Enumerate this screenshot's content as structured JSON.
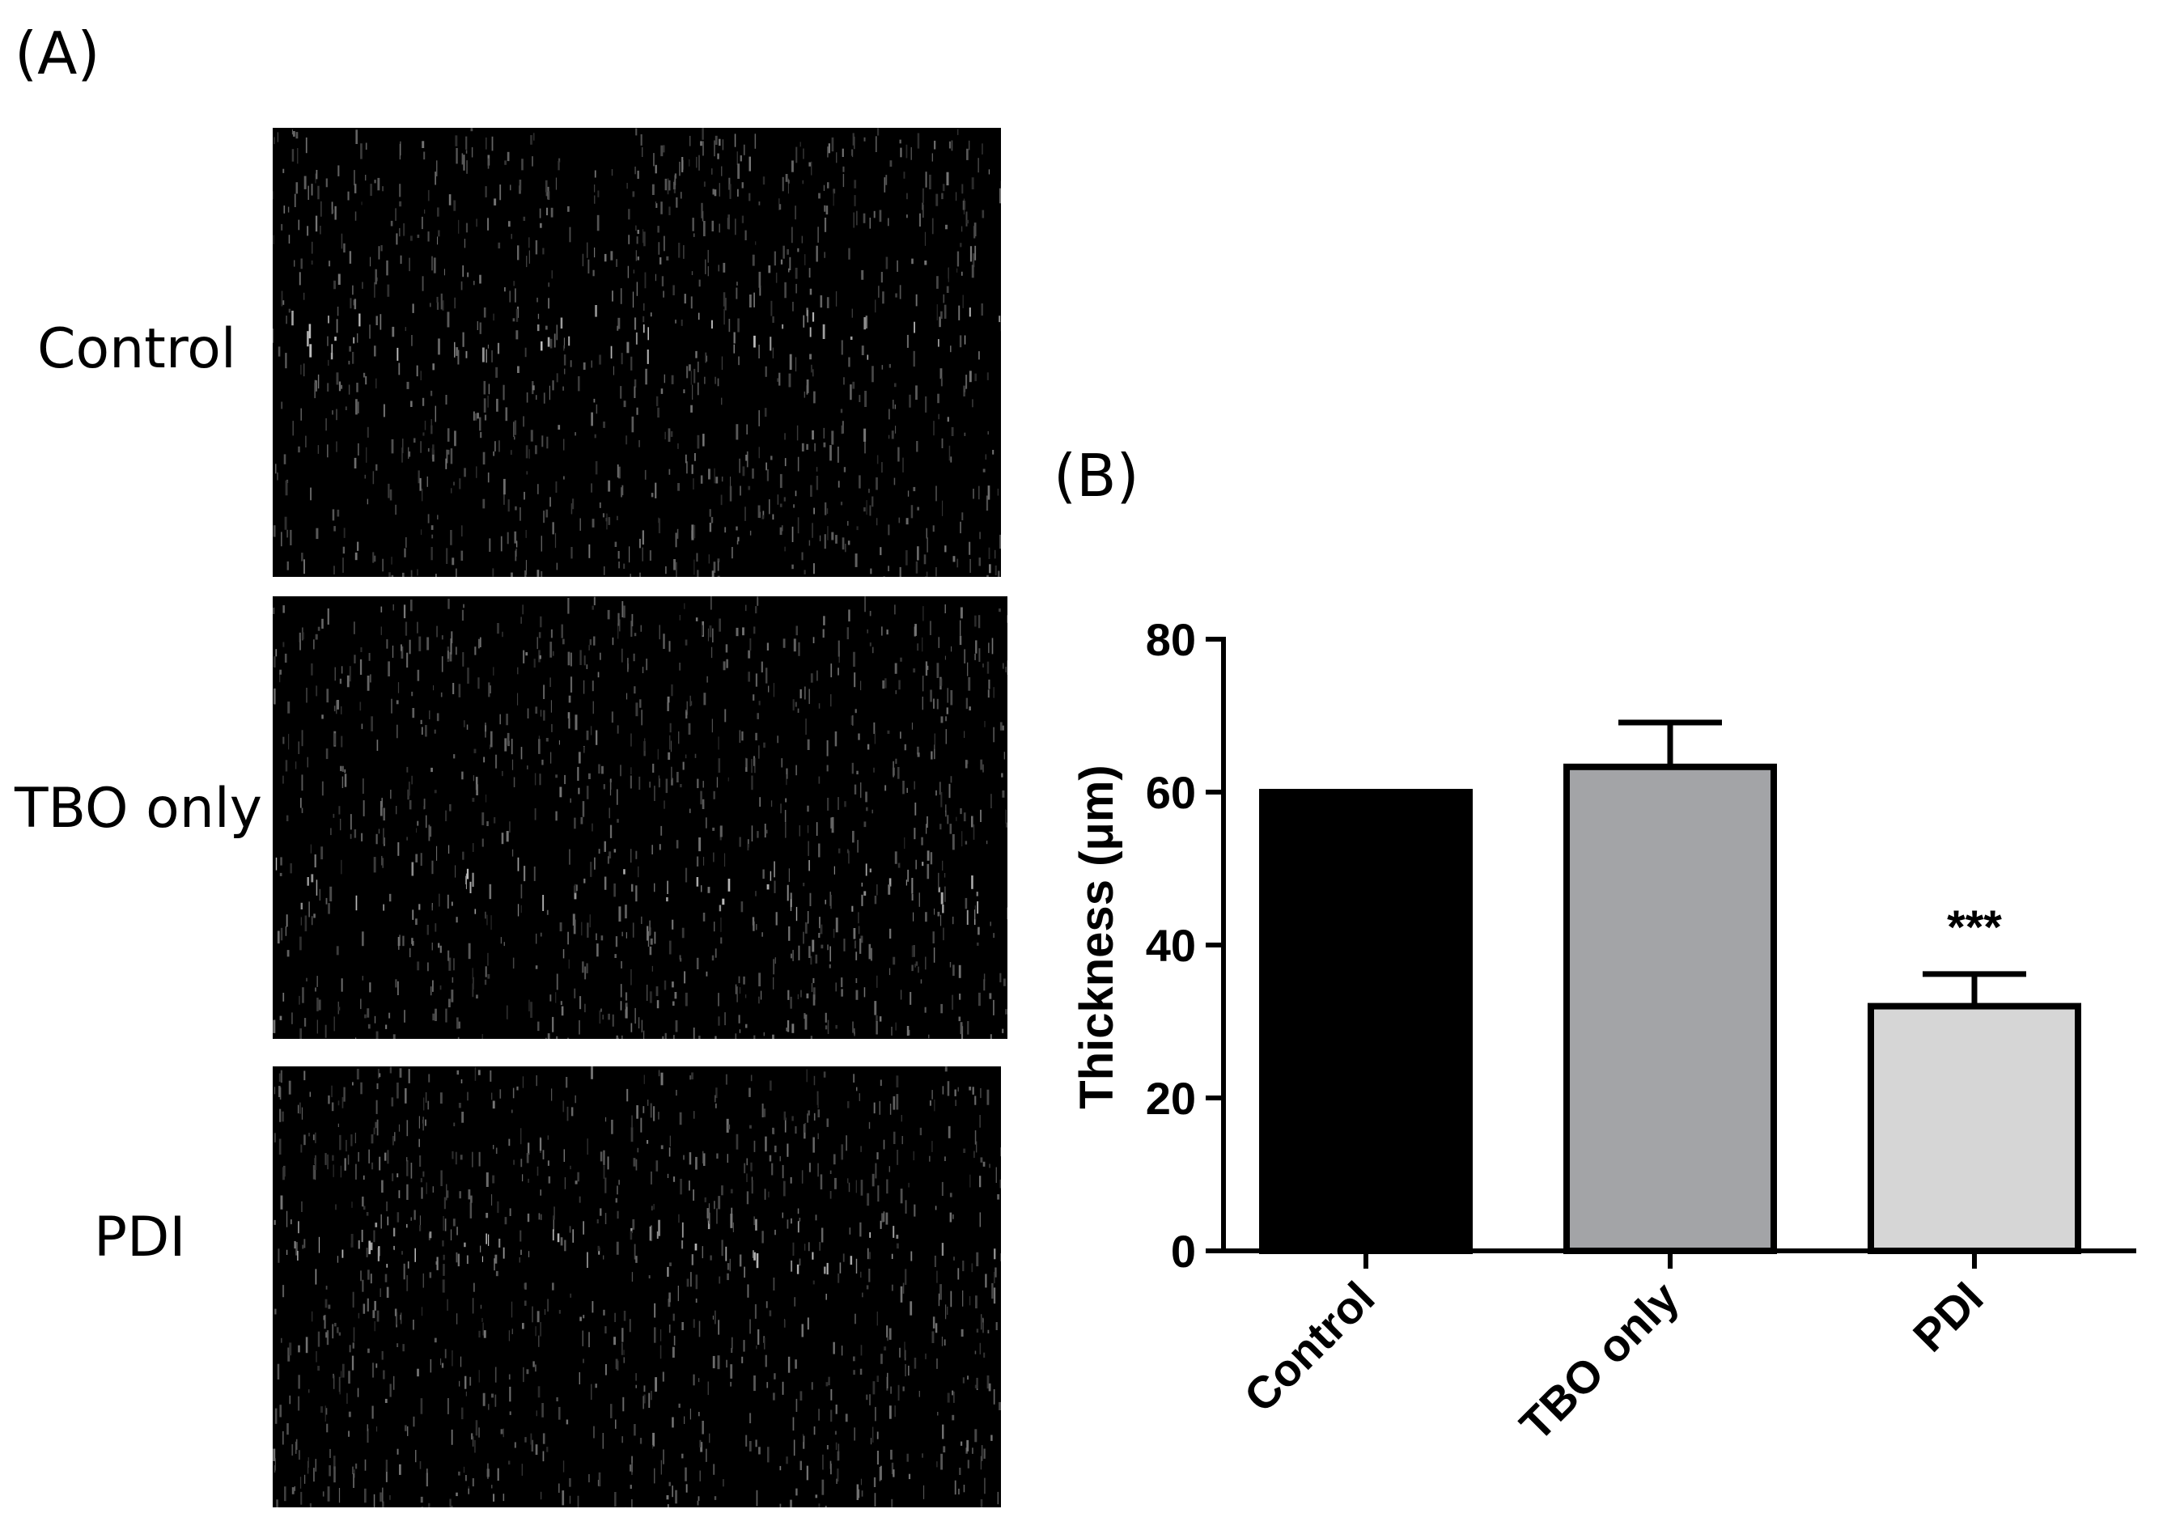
{
  "panel_a": {
    "label": "(A)",
    "rows": [
      {
        "label": "Control"
      },
      {
        "label": "TBO only"
      },
      {
        "label": "PDI"
      }
    ]
  },
  "panel_b": {
    "label": "(B)"
  },
  "chart_data": {
    "type": "bar",
    "title": "",
    "xlabel": "",
    "ylabel": "Thickness (μm)",
    "categories": [
      "Control",
      "TBO only",
      "PDI"
    ],
    "values": [
      60,
      63.3,
      32
    ],
    "error_upper": [
      0,
      5.8,
      4.2
    ],
    "bar_colors": [
      "#000000",
      "#a3a4a7",
      "#d6d6d6"
    ],
    "ylim": [
      0,
      80
    ],
    "yticks": [
      0,
      20,
      40,
      60,
      80
    ],
    "annotations": [
      {
        "category": "PDI",
        "text": "***"
      }
    ],
    "grid": false
  }
}
